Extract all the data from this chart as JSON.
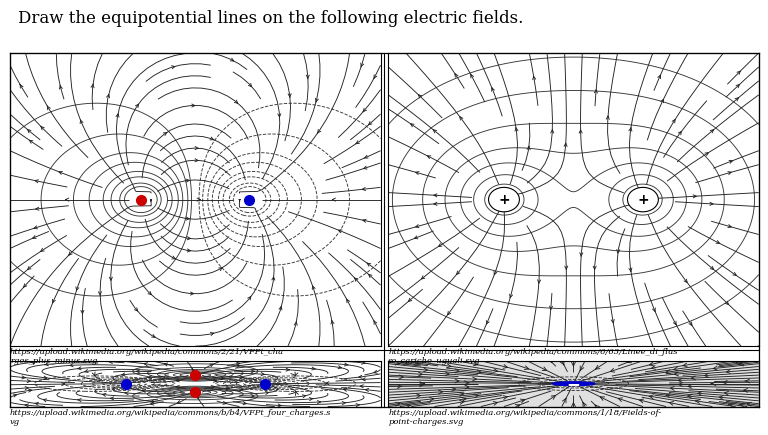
{
  "title": "Draw the equipotential lines on the following electric fields.",
  "title_fontsize": 12,
  "fig_bg": "#ffffff",
  "panel_bg": "#ffffff",
  "panel4_bg": "#e0e0e0",
  "caption1": "https://upload.wikimedia.org/wikipedia/commons/2/21/VFPt_cha\nrges_plus_minus.svg",
  "caption2": "https://upload.wikimedia.org/wikipedia/commons/6/63/Linee_di_flus\nso_cariche_uguali.svg",
  "caption3": "https://upload.wikimedia.org/wikipedia/commons/b/b4/VFPt_four_charges.s\nvg",
  "caption4": "https://upload.wikimedia.org/wikipedia/commons/1/18/Fields-of-\npoint-charges.svg",
  "caption_fontsize": 6.0,
  "charge_red": "#cc0000",
  "charge_blue": "#0000cc",
  "line_color": "#222222",
  "line_width": 0.65
}
